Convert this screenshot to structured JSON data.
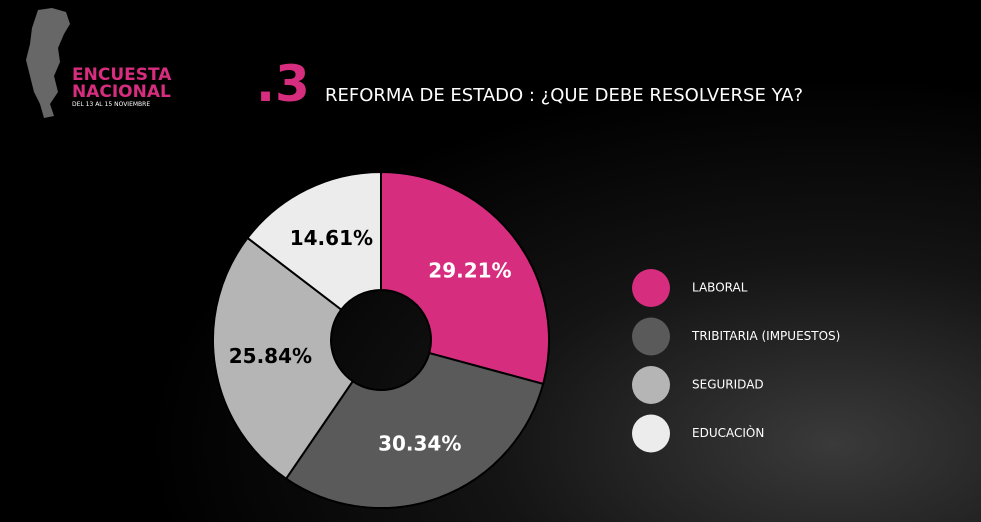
{
  "header": {
    "brand": [
      "ENCUESTA",
      "NACIONAL"
    ],
    "dates": "DEL 13 AL 15 NOVIEMBRE",
    "section": ".3"
  },
  "chart_data": {
    "type": "pie",
    "title": "REFORMA DE ESTADO : ¿QUE DEBE RESOLVERSE YA?",
    "categories": [
      "LABORAL",
      "TRIBITARIA (IMPUESTOS)",
      "SEGURIDAD",
      "EDUCACIÒN"
    ],
    "values": [
      29.21,
      30.34,
      25.84,
      14.61
    ],
    "value_labels": [
      "29.21%",
      "30.34%",
      "25.84%",
      "14.61%"
    ],
    "colors": [
      "#d62d7f",
      "#5a5a5a",
      "#b5b5b5",
      "#ececec"
    ],
    "legend": "right"
  }
}
